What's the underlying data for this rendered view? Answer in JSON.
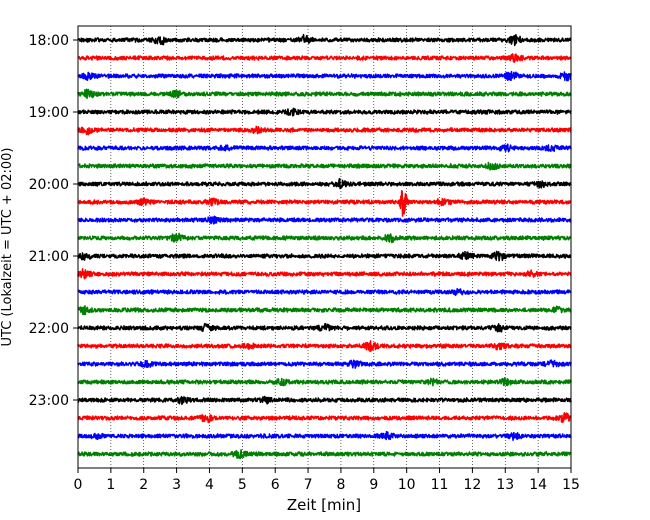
{
  "chart_data": {
    "type": "line",
    "subtype": "helicorder",
    "xlabel": "Zeit  [min]",
    "ylabel": "UTC (Lokalzeit = UTC + 02:00)",
    "xlim": [
      0,
      15
    ],
    "x_ticks": [
      "0",
      "1",
      "2",
      "3",
      "4",
      "5",
      "6",
      "7",
      "8",
      "9",
      "10",
      "11",
      "12",
      "13",
      "14",
      "15"
    ],
    "grid": "vertical dotted at each minute",
    "line_minutes": 15,
    "y_tick_labels": [
      {
        "row": 0,
        "label": "18:00"
      },
      {
        "row": 4,
        "label": "19:00"
      },
      {
        "row": 8,
        "label": "20:00"
      },
      {
        "row": 12,
        "label": "21:00"
      },
      {
        "row": 16,
        "label": "22:00"
      },
      {
        "row": 20,
        "label": "23:00"
      }
    ],
    "color_cycle": [
      "#000000",
      "#ff0000",
      "#0000ff",
      "#008000"
    ],
    "series": [
      {
        "start": "18:00",
        "color": "#000000",
        "events": [
          {
            "t": 2.5,
            "a": 0.5
          },
          {
            "t": 6.9,
            "a": 0.5
          },
          {
            "t": 13.3,
            "a": 0.6
          }
        ]
      },
      {
        "start": "18:15",
        "color": "#ff0000",
        "events": [
          {
            "t": 13.3,
            "a": 0.4
          }
        ]
      },
      {
        "start": "18:30",
        "color": "#0000ff",
        "events": [
          {
            "t": 0.3,
            "a": 0.4
          },
          {
            "t": 13.2,
            "a": 0.6
          },
          {
            "t": 14.9,
            "a": 0.5
          }
        ]
      },
      {
        "start": "18:45",
        "color": "#008000",
        "events": [
          {
            "t": 0.3,
            "a": 0.5
          },
          {
            "t": 3.0,
            "a": 0.35
          }
        ]
      },
      {
        "start": "19:00",
        "color": "#000000",
        "events": [
          {
            "t": 6.5,
            "a": 0.35
          }
        ]
      },
      {
        "start": "19:15",
        "color": "#ff0000",
        "events": [
          {
            "t": 0.3,
            "a": 0.4
          },
          {
            "t": 5.4,
            "a": 0.3
          }
        ]
      },
      {
        "start": "19:30",
        "color": "#0000ff",
        "events": [
          {
            "t": 4.5,
            "a": 0.3
          },
          {
            "t": 13.0,
            "a": 0.4
          },
          {
            "t": 14.4,
            "a": 0.3
          }
        ]
      },
      {
        "start": "19:45",
        "color": "#008000",
        "events": [
          {
            "t": 12.6,
            "a": 0.4
          }
        ]
      },
      {
        "start": "20:00",
        "color": "#000000",
        "events": [
          {
            "t": 8.0,
            "a": 0.5
          },
          {
            "t": 14.1,
            "a": 0.35
          }
        ]
      },
      {
        "start": "20:15",
        "color": "#ff0000",
        "events": [
          {
            "t": 2.0,
            "a": 0.35
          },
          {
            "t": 4.1,
            "a": 0.3
          },
          {
            "t": 9.9,
            "a": 2.0
          },
          {
            "t": 11.1,
            "a": 0.4
          }
        ]
      },
      {
        "start": "20:30",
        "color": "#0000ff",
        "events": [
          {
            "t": 4.1,
            "a": 0.3
          }
        ]
      },
      {
        "start": "20:45",
        "color": "#008000",
        "events": [
          {
            "t": 3.0,
            "a": 0.55
          },
          {
            "t": 9.5,
            "a": 0.45
          }
        ]
      },
      {
        "start": "21:00",
        "color": "#000000",
        "events": [
          {
            "t": 0.2,
            "a": 0.4
          },
          {
            "t": 11.8,
            "a": 0.4
          },
          {
            "t": 12.8,
            "a": 0.5
          }
        ]
      },
      {
        "start": "21:15",
        "color": "#ff0000",
        "events": [
          {
            "t": 0.2,
            "a": 0.5
          },
          {
            "t": 13.8,
            "a": 0.3
          }
        ]
      },
      {
        "start": "21:30",
        "color": "#0000ff",
        "events": [
          {
            "t": 11.6,
            "a": 0.3
          }
        ]
      },
      {
        "start": "21:45",
        "color": "#008000",
        "events": [
          {
            "t": 0.2,
            "a": 0.4
          },
          {
            "t": 14.6,
            "a": 0.3
          }
        ]
      },
      {
        "start": "22:00",
        "color": "#000000",
        "events": [
          {
            "t": 3.9,
            "a": 0.4
          },
          {
            "t": 7.5,
            "a": 0.4
          },
          {
            "t": 12.8,
            "a": 0.35
          }
        ]
      },
      {
        "start": "22:15",
        "color": "#ff0000",
        "events": [
          {
            "t": 5.2,
            "a": 0.3
          },
          {
            "t": 8.9,
            "a": 0.6
          },
          {
            "t": 12.8,
            "a": 0.35
          }
        ]
      },
      {
        "start": "22:30",
        "color": "#0000ff",
        "events": [
          {
            "t": 2.1,
            "a": 0.35
          },
          {
            "t": 8.4,
            "a": 0.4
          },
          {
            "t": 14.4,
            "a": 0.3
          }
        ]
      },
      {
        "start": "22:45",
        "color": "#008000",
        "events": [
          {
            "t": 6.2,
            "a": 0.3
          },
          {
            "t": 10.8,
            "a": 0.3
          },
          {
            "t": 13.0,
            "a": 0.3
          }
        ]
      },
      {
        "start": "23:00",
        "color": "#000000",
        "events": [
          {
            "t": 3.2,
            "a": 0.4
          },
          {
            "t": 5.7,
            "a": 0.3
          }
        ]
      },
      {
        "start": "23:15",
        "color": "#ff0000",
        "events": [
          {
            "t": 3.9,
            "a": 0.4
          },
          {
            "t": 14.8,
            "a": 0.5
          }
        ]
      },
      {
        "start": "23:30",
        "color": "#0000ff",
        "events": [
          {
            "t": 0.6,
            "a": 0.3
          },
          {
            "t": 9.4,
            "a": 0.35
          },
          {
            "t": 13.3,
            "a": 0.35
          }
        ]
      },
      {
        "start": "23:45",
        "color": "#008000",
        "events": [
          {
            "t": 4.9,
            "a": 0.4
          }
        ]
      }
    ]
  }
}
